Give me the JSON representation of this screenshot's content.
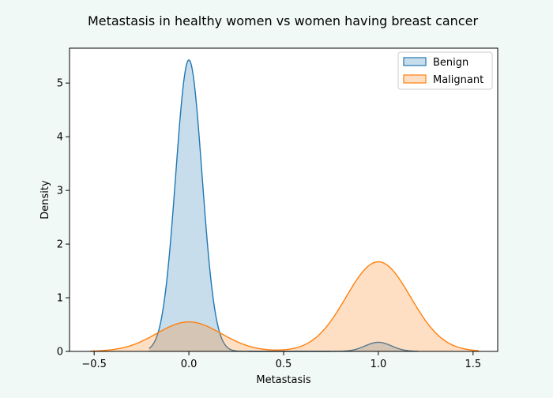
{
  "chart_data": {
    "type": "area",
    "title": "Metastasis in healthy women vs women having breast cancer",
    "xlabel": "Metastasis",
    "ylabel": "Density",
    "xlim": [
      -0.63,
      1.63
    ],
    "ylim": [
      0,
      5.65
    ],
    "xticks": [
      -0.5,
      0.0,
      0.5,
      1.0,
      1.5
    ],
    "xtick_labels": [
      "−0.5",
      "0.0",
      "0.5",
      "1.0",
      "1.5"
    ],
    "yticks": [
      0,
      1,
      2,
      3,
      4,
      5
    ],
    "ytick_labels": [
      "0",
      "1",
      "2",
      "3",
      "4",
      "5"
    ],
    "grid": false,
    "legend_position": "top-right",
    "series": [
      {
        "name": "Benign",
        "color": "#1f77b4",
        "x_range": [
          -0.21,
          1.21
        ],
        "components": [
          {
            "mean": 0.0,
            "sd": 0.0694,
            "peak": 5.43
          },
          {
            "mean": 1.0,
            "sd": 0.0694,
            "peak": 0.17
          }
        ]
      },
      {
        "name": "Malignant",
        "color": "#ff7f0e",
        "x_range": [
          -0.52,
          1.53
        ],
        "components": [
          {
            "mean": 0.0,
            "sd": 0.1703,
            "peak": 0.55
          },
          {
            "mean": 1.0,
            "sd": 0.1703,
            "peak": 1.67
          }
        ]
      }
    ]
  }
}
